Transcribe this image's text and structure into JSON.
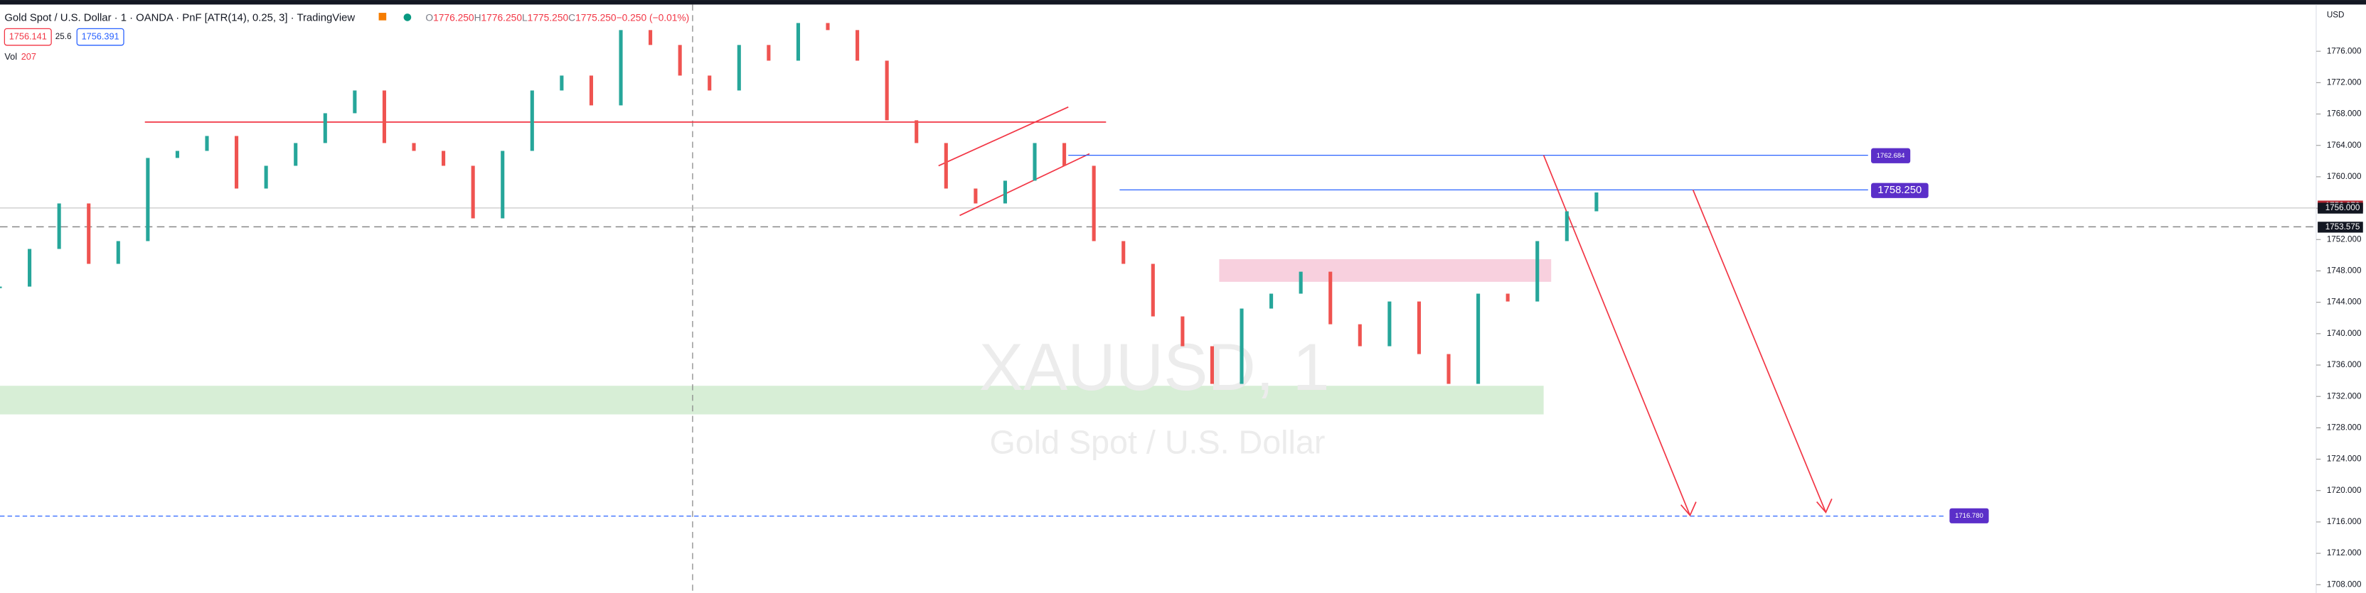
{
  "header": {
    "title": "Gold Spot / U.S. Dollar · 1 · OANDA · PnF [ATR(14), 0.25, 3] · TradingView",
    "ohlc_labels": [
      "O",
      "H",
      "L",
      "C"
    ],
    "ohlc_values": [
      "1776.250",
      "1776.250",
      "1775.250",
      "1775.250"
    ],
    "change": "−0.250 (−0.01%)",
    "bid": "1756.141",
    "spread": "25.6",
    "ask": "1756.391",
    "vol_label": "Vol",
    "vol_value": "207"
  },
  "watermark": {
    "symbol": "XAUUSD, 1",
    "name": "Gold Spot / U.S. Dollar"
  },
  "price_axis": {
    "currency": "USD",
    "ticks": [
      {
        "value": 1708,
        "label": "1708.000"
      },
      {
        "value": 1712,
        "label": "1712.000"
      },
      {
        "value": 1716,
        "label": "1716.000"
      },
      {
        "value": 1720,
        "label": "1720.000"
      },
      {
        "value": 1724,
        "label": "1724.000"
      },
      {
        "value": 1728,
        "label": "1728.000"
      },
      {
        "value": 1732,
        "label": "1732.000"
      },
      {
        "value": 1736,
        "label": "1736.000"
      },
      {
        "value": 1740,
        "label": "1740.000"
      },
      {
        "value": 1744,
        "label": "1744.000"
      },
      {
        "value": 1748,
        "label": "1748.000"
      },
      {
        "value": 1752,
        "label": "1752.000"
      },
      {
        "value": 1756,
        "label": "1756.000"
      },
      {
        "value": 1760,
        "label": "1760.000"
      },
      {
        "value": 1764,
        "label": "1764.000"
      },
      {
        "value": 1768,
        "label": "1768.000"
      },
      {
        "value": 1772,
        "label": "1772.000"
      },
      {
        "value": 1776,
        "label": "1776.000"
      }
    ],
    "markers": [
      {
        "value": 1756.27,
        "label": "1756.270",
        "color": "#b22833"
      },
      {
        "value": 1756,
        "label": "1756.000",
        "color": "#131722"
      },
      {
        "value": 1753.575,
        "label": "1753.575",
        "color": "#131722"
      }
    ]
  },
  "annotations": [
    {
      "value": 1762.684,
      "label": "1762.684"
    },
    {
      "value": 1758.25,
      "label": "1758.250"
    },
    {
      "value": 1716.78,
      "label": "1716.780"
    }
  ],
  "price_trace": {
    "values": [
      1746,
      1750.8,
      1756.6,
      1748.9,
      1751.8,
      1762.4,
      1763.3,
      1765.2,
      1758.5,
      1761.4,
      1764.3,
      1768.1,
      1771,
      1764.3,
      1763.3,
      1761.4,
      1754.7,
      1763.3,
      1771,
      1772.9,
      1769.1,
      1778.7,
      1776.8,
      1772.9,
      1771,
      1776.8,
      1774.8,
      1779.6,
      1778.7,
      1774.8,
      1767.2,
      1764.3,
      1758.5,
      1756.6,
      1759.5,
      1764.3,
      1761.4,
      1751.8,
      1748.9,
      1742.2,
      1738.4,
      1733.6,
      1743.2,
      1745.1,
      1747.9,
      1741.2,
      1738.4,
      1744.1,
      1737.4,
      1733.6,
      1745.1,
      1744.1,
      1751.8,
      1755.6,
      1758
    ],
    "up_color": "#26a69a",
    "down_color": "#ef5350"
  }
}
